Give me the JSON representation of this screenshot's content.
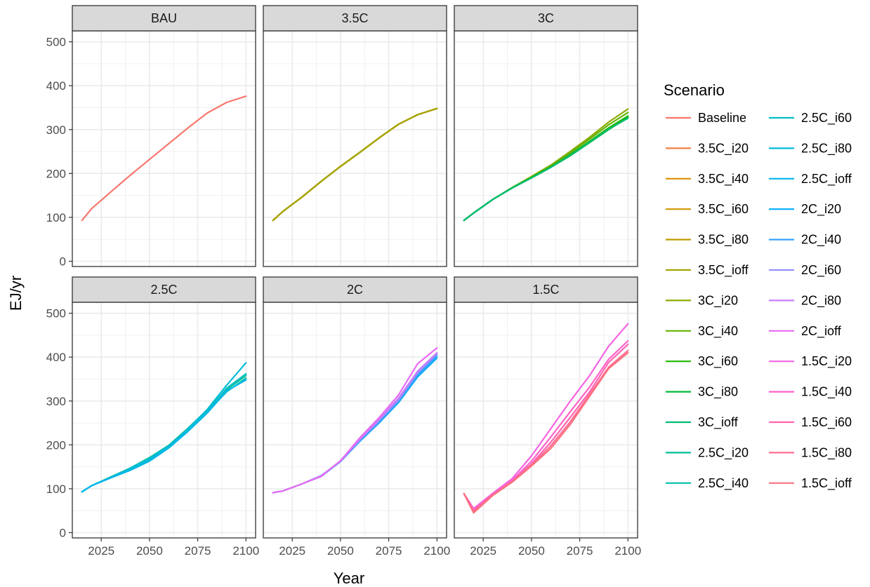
{
  "chart_data": {
    "type": "line",
    "xlabel": "Year",
    "ylabel": "EJ/yr",
    "xlim": [
      2010,
      2105
    ],
    "ylim": [
      -12,
      525
    ],
    "x_ticks": [
      2025,
      2050,
      2075,
      2100
    ],
    "y_ticks": [
      0,
      100,
      200,
      300,
      400,
      500
    ],
    "grid": true,
    "legend_placement": "right",
    "legend_title": "Scenario",
    "legend": [
      {
        "name": "Baseline",
        "color": "#F8766D"
      },
      {
        "name": "3.5C_i20",
        "color": "#EE8043"
      },
      {
        "name": "3.5C_i40",
        "color": "#DE8C00"
      },
      {
        "name": "3.5C_i60",
        "color": "#CD9600"
      },
      {
        "name": "3.5C_i80",
        "color": "#C09B00"
      },
      {
        "name": "3.5C_ioff",
        "color": "#A3A500"
      },
      {
        "name": "3C_i20",
        "color": "#8AAB00"
      },
      {
        "name": "3C_i40",
        "color": "#64B200"
      },
      {
        "name": "3C_i60",
        "color": "#1FB800"
      },
      {
        "name": "3C_i80",
        "color": "#00BA38"
      },
      {
        "name": "3C_ioff",
        "color": "#00BC74"
      },
      {
        "name": "2.5C_i20",
        "color": "#00BF96"
      },
      {
        "name": "2.5C_i40",
        "color": "#00C0AF"
      },
      {
        "name": "2.5C_i60",
        "color": "#00BFC4"
      },
      {
        "name": "2.5C_i80",
        "color": "#00BCD8"
      },
      {
        "name": "2.5C_ioff",
        "color": "#00B6EB"
      },
      {
        "name": "2C_i20",
        "color": "#00ADFA"
      },
      {
        "name": "2C_i40",
        "color": "#35A2FF"
      },
      {
        "name": "2C_i60",
        "color": "#8F91FF"
      },
      {
        "name": "2C_i80",
        "color": "#C77CFF"
      },
      {
        "name": "2C_ioff",
        "color": "#E76BF3"
      },
      {
        "name": "1.5C_i20",
        "color": "#F564E3"
      },
      {
        "name": "1.5C_i40",
        "color": "#FF61C9"
      },
      {
        "name": "1.5C_i60",
        "color": "#FF64B0"
      },
      {
        "name": "1.5C_i80",
        "color": "#FF6C94"
      },
      {
        "name": "1.5C_ioff",
        "color": "#FC717F"
      }
    ],
    "panels": [
      {
        "title": "BAU",
        "series": [
          {
            "name": "Baseline",
            "color": "#F8766D",
            "x": [
              2015,
              2020,
              2030,
              2040,
              2050,
              2060,
              2070,
              2080,
              2090,
              2100
            ],
            "y": [
              93,
              120,
              158,
              196,
              232,
              268,
              304,
              338,
              362,
              376
            ]
          }
        ]
      },
      {
        "title": "3.5C",
        "series": [
          {
            "name": "3.5C_i20",
            "color": "#EE8043",
            "x": [
              2015,
              2020,
              2030,
              2040,
              2050,
              2060,
              2070,
              2080,
              2090,
              2100
            ],
            "y": [
              93,
              113,
              146,
              182,
              216,
              248,
              281,
              312,
              334,
              348
            ]
          },
          {
            "name": "3.5C_i40",
            "color": "#DE8C00",
            "x": [
              2015,
              2020,
              2030,
              2040,
              2050,
              2060,
              2070,
              2080,
              2090,
              2100
            ],
            "y": [
              93,
              113,
              146,
              182,
              216,
              248,
              281,
              312,
              334,
              348
            ]
          },
          {
            "name": "3.5C_i60",
            "color": "#CD9600",
            "x": [
              2015,
              2020,
              2030,
              2040,
              2050,
              2060,
              2070,
              2080,
              2090,
              2100
            ],
            "y": [
              93,
              113,
              146,
              182,
              216,
              248,
              281,
              312,
              334,
              348
            ]
          },
          {
            "name": "3.5C_i80",
            "color": "#C09B00",
            "x": [
              2015,
              2020,
              2030,
              2040,
              2050,
              2060,
              2070,
              2080,
              2090,
              2100
            ],
            "y": [
              93,
              113,
              146,
              182,
              216,
              248,
              281,
              312,
              334,
              348
            ]
          },
          {
            "name": "3.5C_ioff",
            "color": "#A3A500",
            "x": [
              2015,
              2020,
              2030,
              2040,
              2050,
              2060,
              2070,
              2080,
              2090,
              2100
            ],
            "y": [
              93,
              113,
              146,
              182,
              216,
              248,
              281,
              312,
              334,
              348
            ]
          }
        ]
      },
      {
        "title": "3C",
        "series": [
          {
            "name": "3C_i20",
            "color": "#8AAB00",
            "x": [
              2015,
              2020,
              2030,
              2040,
              2050,
              2060,
              2070,
              2080,
              2090,
              2100
            ],
            "y": [
              93,
              110,
              141,
              168,
              193,
              219,
              250,
              282,
              317,
              347
            ]
          },
          {
            "name": "3C_i40",
            "color": "#64B200",
            "x": [
              2015,
              2020,
              2030,
              2040,
              2050,
              2060,
              2070,
              2080,
              2090,
              2100
            ],
            "y": [
              93,
              110,
              141,
              168,
              192,
              217,
              247,
              278,
              311,
              339
            ]
          },
          {
            "name": "3C_i60",
            "color": "#1FB800",
            "x": [
              2015,
              2020,
              2030,
              2040,
              2050,
              2060,
              2070,
              2080,
              2090,
              2100
            ],
            "y": [
              93,
              110,
              141,
              167,
              191,
              215,
              243,
              273,
              304,
              331
            ]
          },
          {
            "name": "3C_i80",
            "color": "#00BA38",
            "x": [
              2015,
              2020,
              2030,
              2040,
              2050,
              2060,
              2070,
              2080,
              2090,
              2100
            ],
            "y": [
              93,
              110,
              141,
              167,
              190,
              214,
              240,
              270,
              300,
              328
            ]
          },
          {
            "name": "3C_ioff",
            "color": "#00BC74",
            "x": [
              2015,
              2020,
              2030,
              2040,
              2050,
              2060,
              2070,
              2080,
              2090,
              2100
            ],
            "y": [
              93,
              110,
              141,
              167,
              190,
              214,
              241,
              271,
              301,
              326
            ]
          }
        ]
      },
      {
        "title": "2.5C",
        "series": [
          {
            "name": "2.5C_i20",
            "color": "#00BF96",
            "x": [
              2015,
              2020,
              2030,
              2040,
              2050,
              2060,
              2070,
              2080,
              2090,
              2100
            ],
            "y": [
              93,
              107,
              127,
              147,
              171,
              199,
              238,
              280,
              326,
              358
            ]
          },
          {
            "name": "2.5C_i40",
            "color": "#00C0AF",
            "x": [
              2015,
              2020,
              2030,
              2040,
              2050,
              2060,
              2070,
              2080,
              2090,
              2100
            ],
            "y": [
              93,
              107,
              126,
              145,
              168,
              196,
              234,
              275,
              321,
              352
            ]
          },
          {
            "name": "2.5C_i60",
            "color": "#00BFC4",
            "x": [
              2015,
              2020,
              2030,
              2040,
              2050,
              2060,
              2070,
              2080,
              2090,
              2100
            ],
            "y": [
              93,
              107,
              126,
              144,
              166,
              195,
              233,
              276,
              329,
              362
            ]
          },
          {
            "name": "2.5C_i80",
            "color": "#00BCD8",
            "x": [
              2015,
              2020,
              2030,
              2040,
              2050,
              2060,
              2070,
              2080,
              2090,
              2100
            ],
            "y": [
              93,
              107,
              126,
              146,
              169,
              197,
              236,
              281,
              336,
              387
            ]
          },
          {
            "name": "2.5C_ioff",
            "color": "#00B6EB",
            "x": [
              2015,
              2020,
              2030,
              2040,
              2050,
              2060,
              2070,
              2080,
              2090,
              2100
            ],
            "y": [
              93,
              107,
              125,
              142,
              163,
              193,
              231,
              273,
              323,
              348
            ]
          }
        ]
      },
      {
        "title": "2C",
        "series": [
          {
            "name": "2C_i20",
            "color": "#00ADFA",
            "x": [
              2015,
              2020,
              2030,
              2040,
              2050,
              2060,
              2070,
              2080,
              2090,
              2100
            ],
            "y": [
              91,
              95,
              111,
              128,
              162,
              208,
              250,
              296,
              355,
              398
            ]
          },
          {
            "name": "2C_i40",
            "color": "#35A2FF",
            "x": [
              2015,
              2020,
              2030,
              2040,
              2050,
              2060,
              2070,
              2080,
              2090,
              2100
            ],
            "y": [
              91,
              95,
              111,
              130,
              162,
              209,
              252,
              298,
              359,
              403
            ]
          },
          {
            "name": "2C_i60",
            "color": "#8F91FF",
            "x": [
              2015,
              2020,
              2030,
              2040,
              2050,
              2060,
              2070,
              2080,
              2090,
              2100
            ],
            "y": [
              91,
              95,
              111,
              130,
              163,
              211,
              255,
              302,
              364,
              407
            ]
          },
          {
            "name": "2C_i80",
            "color": "#C77CFF",
            "x": [
              2015,
              2020,
              2030,
              2040,
              2050,
              2060,
              2070,
              2080,
              2090,
              2100
            ],
            "y": [
              91,
              95,
              111,
              129,
              163,
              213,
              258,
              306,
              368,
              410
            ]
          },
          {
            "name": "2C_ioff",
            "color": "#E76BF3",
            "x": [
              2015,
              2020,
              2030,
              2040,
              2050,
              2060,
              2070,
              2080,
              2090,
              2100
            ],
            "y": [
              91,
              95,
              111,
              128,
              164,
              216,
              262,
              313,
              385,
              421
            ]
          }
        ]
      },
      {
        "title": "1.5C",
        "series": [
          {
            "name": "1.5C_i20",
            "color": "#F564E3",
            "x": [
              2015,
              2020,
              2030,
              2040,
              2050,
              2060,
              2070,
              2080,
              2090,
              2100
            ],
            "y": [
              89,
              55,
              90,
              123,
              175,
              237,
              299,
              357,
              425,
              476
            ]
          },
          {
            "name": "1.5C_i40",
            "color": "#FF61C9",
            "x": [
              2015,
              2020,
              2030,
              2040,
              2050,
              2060,
              2070,
              2080,
              2090,
              2100
            ],
            "y": [
              89,
              52,
              88,
              119,
              163,
              218,
              275,
              331,
              395,
              437
            ]
          },
          {
            "name": "1.5C_i60",
            "color": "#FF64B0",
            "x": [
              2015,
              2020,
              2030,
              2040,
              2050,
              2060,
              2070,
              2080,
              2090,
              2100
            ],
            "y": [
              89,
              50,
              87,
              117,
              157,
              206,
              262,
              320,
              388,
              429
            ]
          },
          {
            "name": "1.5C_i80",
            "color": "#FF6C94",
            "x": [
              2015,
              2020,
              2030,
              2040,
              2050,
              2060,
              2070,
              2080,
              2090,
              2100
            ],
            "y": [
              89,
              48,
              86,
              116,
              154,
              198,
              252,
              314,
              377,
              415
            ]
          },
          {
            "name": "1.5C_ioff",
            "color": "#FC717F",
            "x": [
              2015,
              2020,
              2030,
              2040,
              2050,
              2060,
              2070,
              2080,
              2090,
              2100
            ],
            "y": [
              89,
              45,
              85,
              115,
              152,
              192,
              246,
              310,
              374,
              410
            ]
          }
        ]
      }
    ]
  }
}
